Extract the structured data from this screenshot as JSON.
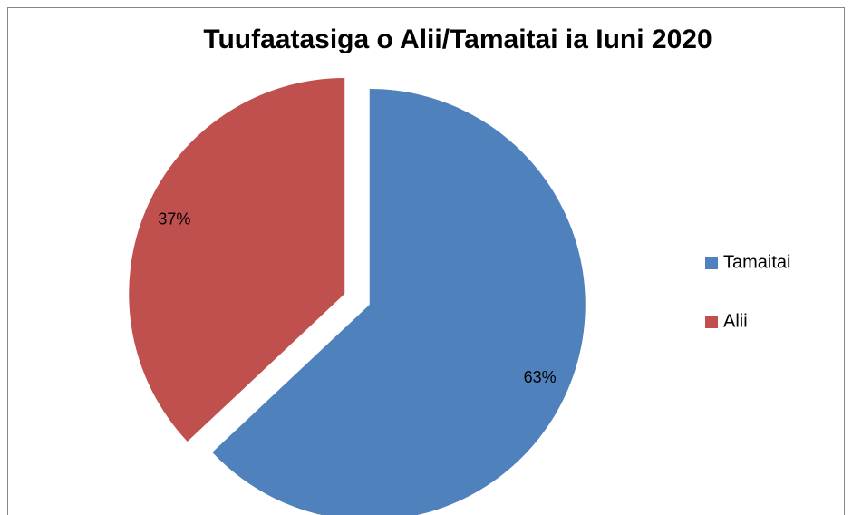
{
  "chart_data": {
    "type": "pie",
    "title": "Tuufaatasiga o Alii/Tamaitai ia Iuni 2020",
    "categories": [
      "Tamaitai",
      "Alii"
    ],
    "values": [
      63,
      37
    ],
    "value_labels": [
      "63%",
      "37%"
    ],
    "colors": [
      "#4f81bd",
      "#c0504d"
    ],
    "legend": "right"
  }
}
